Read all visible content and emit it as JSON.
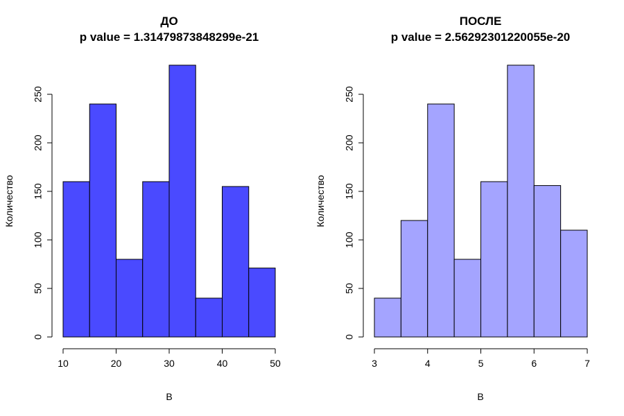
{
  "chart_data": [
    {
      "type": "bar",
      "title": "ДО",
      "subtitle": "p value = 1.31479873848299e-21",
      "xlabel": "В",
      "ylabel": "Количество",
      "bin_edges": [
        10,
        15,
        20,
        25,
        30,
        35,
        40,
        45,
        50
      ],
      "values": [
        160,
        240,
        80,
        160,
        280,
        40,
        155,
        71
      ],
      "xlim": [
        10,
        50
      ],
      "ylim": [
        0,
        280
      ],
      "xticks": [
        10,
        20,
        30,
        40,
        50
      ],
      "yticks": [
        0,
        50,
        100,
        150,
        200,
        250
      ],
      "bar_color": "#4a4aff",
      "grid": false
    },
    {
      "type": "bar",
      "title": "ПОСЛЕ",
      "subtitle": "p value = 2.56292301220055e-20",
      "xlabel": "В",
      "ylabel": "Количество",
      "bin_edges": [
        3,
        3.5,
        4,
        4.5,
        5,
        5.5,
        6,
        6.5,
        7
      ],
      "values": [
        40,
        120,
        240,
        80,
        160,
        280,
        156,
        110
      ],
      "xlim": [
        3,
        7
      ],
      "ylim": [
        0,
        280
      ],
      "xticks": [
        3,
        4,
        5,
        6,
        7
      ],
      "yticks": [
        0,
        50,
        100,
        150,
        200,
        250
      ],
      "bar_color": "#a4a4ff",
      "grid": false
    }
  ]
}
